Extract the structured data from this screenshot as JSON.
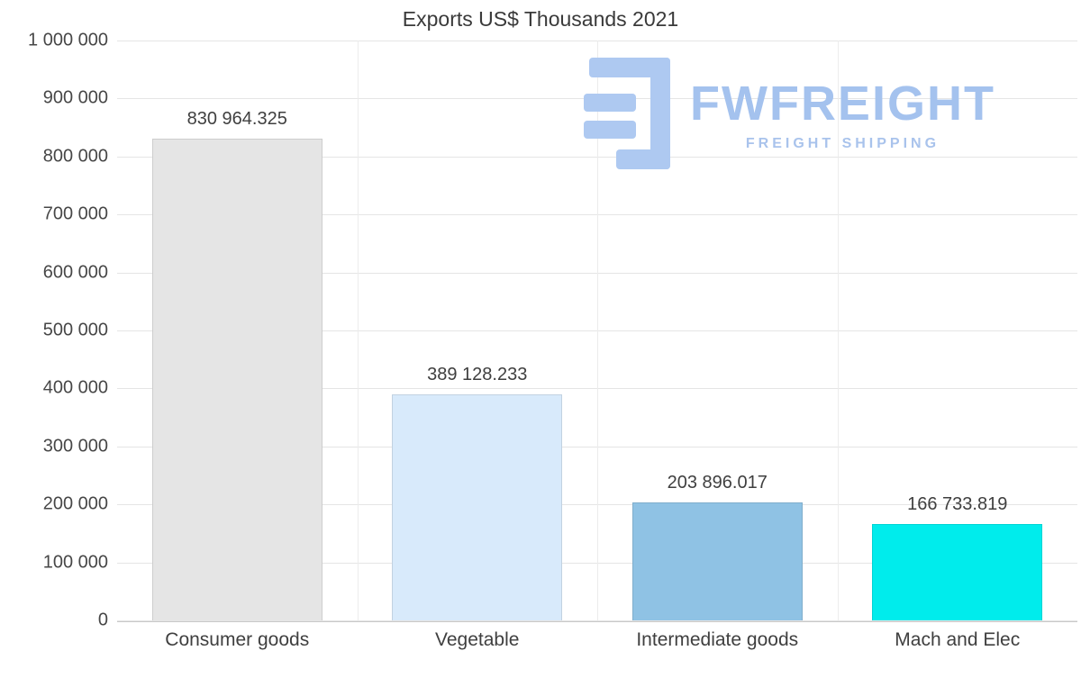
{
  "watermark": {
    "brand": "FWFREIGHT",
    "tagline": "FREIGHT SHIPPING",
    "color": "#a4c2ee"
  },
  "chart_data": {
    "type": "bar",
    "title": "Exports US$ Thousands 2021",
    "categories": [
      "Consumer goods",
      "Vegetable",
      "Intermediate goods",
      "Mach and Elec"
    ],
    "values": [
      830964.325,
      389128.233,
      203896.017,
      166733.819
    ],
    "value_labels": [
      "830 964.325",
      "389 128.233",
      "203 896.017",
      "166 733.819"
    ],
    "bar_colors": [
      "#e5e5e5",
      "#d8eafb",
      "#8fc2e4",
      "#00ecec"
    ],
    "xlabel": "",
    "ylabel": "",
    "ylim": [
      0,
      1000000
    ],
    "ytick_step": 100000,
    "ytick_labels": [
      "0",
      "100 000",
      "200 000",
      "300 000",
      "400 000",
      "500 000",
      "600 000",
      "700 000",
      "800 000",
      "900 000",
      "1 000 000"
    ],
    "grid": true,
    "legend": "none",
    "bar_width_fraction": 0.71
  }
}
